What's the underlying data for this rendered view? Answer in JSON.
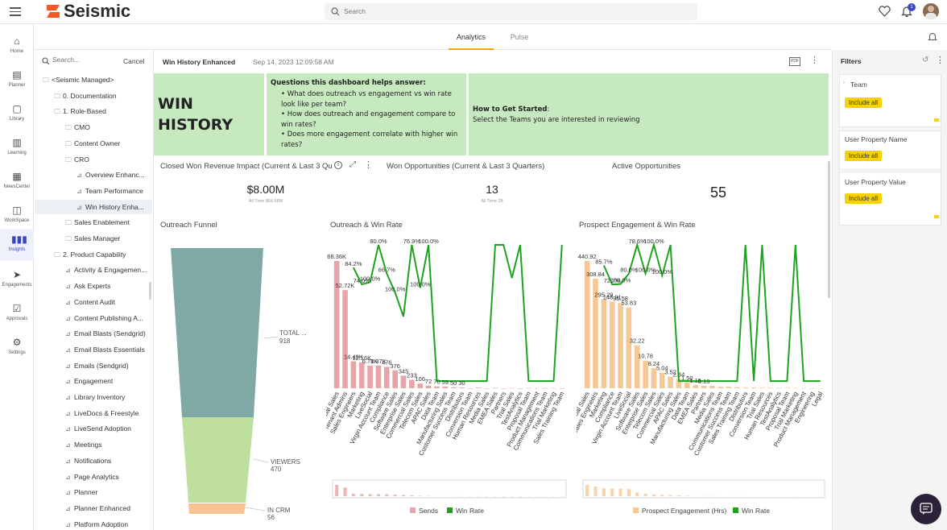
{
  "app": {
    "logo": "Seismic",
    "search_placeholder": "Search",
    "notif_count": "1"
  },
  "nav": [
    "Home",
    "Planner",
    "Library",
    "Learning",
    "NewsCenter",
    "WorkSpace",
    "Insights",
    "Engagements",
    "Approvals",
    "Settings"
  ],
  "tabs": {
    "analytics": "Analytics",
    "pulse": "Pulse"
  },
  "tree_search": {
    "placeholder": "Search...",
    "cancel": "Cancel"
  },
  "tree": [
    {
      "label": "<Seismic Managed>",
      "indent": 0,
      "kind": "folder"
    },
    {
      "label": "0. Documentation",
      "indent": 1,
      "kind": "folder"
    },
    {
      "label": "1. Role-Based",
      "indent": 1,
      "kind": "folder"
    },
    {
      "label": "CMO",
      "indent": 2,
      "kind": "folder"
    },
    {
      "label": "Content Owner",
      "indent": 2,
      "kind": "folder"
    },
    {
      "label": "CRO",
      "indent": 2,
      "kind": "folder"
    },
    {
      "label": "Overview Enhanc...",
      "indent": 3,
      "kind": "report"
    },
    {
      "label": "Team Performance",
      "indent": 3,
      "kind": "report"
    },
    {
      "label": "Win History Enha...",
      "indent": 3,
      "kind": "report",
      "selected": true
    },
    {
      "label": "Sales Enablement",
      "indent": 2,
      "kind": "folder"
    },
    {
      "label": "Sales Manager",
      "indent": 2,
      "kind": "folder"
    },
    {
      "label": "2. Product Capability",
      "indent": 1,
      "kind": "folder"
    },
    {
      "label": "Activity & Engagemen...",
      "indent": 2,
      "kind": "report"
    },
    {
      "label": "Ask Experts",
      "indent": 2,
      "kind": "report"
    },
    {
      "label": "Content Audit",
      "indent": 2,
      "kind": "report"
    },
    {
      "label": "Content Publishing A...",
      "indent": 2,
      "kind": "report"
    },
    {
      "label": "Email Blasts (Sendgrid)",
      "indent": 2,
      "kind": "report"
    },
    {
      "label": "Email Blasts Essentials",
      "indent": 2,
      "kind": "report"
    },
    {
      "label": "Emails (Sendgrid)",
      "indent": 2,
      "kind": "report"
    },
    {
      "label": "Engagement",
      "indent": 2,
      "kind": "report"
    },
    {
      "label": "Library Inventory",
      "indent": 2,
      "kind": "report"
    },
    {
      "label": "LiveDocs & Freestyle",
      "indent": 2,
      "kind": "report"
    },
    {
      "label": "LiveSend Adoption",
      "indent": 2,
      "kind": "report"
    },
    {
      "label": "Meetings",
      "indent": 2,
      "kind": "report"
    },
    {
      "label": "Notifications",
      "indent": 2,
      "kind": "report"
    },
    {
      "label": "Page Analytics",
      "indent": 2,
      "kind": "report"
    },
    {
      "label": "Planner",
      "indent": 2,
      "kind": "report"
    },
    {
      "label": "Planner Enhanced",
      "indent": 2,
      "kind": "report"
    },
    {
      "label": "Platform Adoption",
      "indent": 2,
      "kind": "report"
    }
  ],
  "dashboard": {
    "title": "Win History Enhanced",
    "timestamp": "Sep 14, 2023 12:09:58 AM",
    "pdf": "PDF"
  },
  "banner": {
    "title_line1": "WIN",
    "title_line2": "HISTORY",
    "questions_heading": "Questions this dashboard helps answer:",
    "questions": [
      "What does outreach vs engagement vs win rate look like per team?",
      "How does outreach and engagement compare to win rates?",
      "Does more engagement correlate with higher win rates?"
    ],
    "start_heading": "How to Get Started",
    "start_text": "Select the Teams you are interested in reviewing"
  },
  "kpis": {
    "revenue": {
      "title": "Closed Won Revenue Impact (Current & Last 3 Qu",
      "value": "$8.00M",
      "sub": "All Time $66.58M"
    },
    "won": {
      "title": "Won Opportunities (Current & Last 3 Quarters)",
      "value": "13",
      "sub": "All Time 28"
    },
    "active": {
      "title": "Active Opportunities",
      "value": "55"
    }
  },
  "funnel": {
    "title": "Outreach Funnel",
    "stages": [
      {
        "label": "TOTAL ...",
        "value": 918
      },
      {
        "label": "VIEWERS",
        "value": 470
      },
      {
        "label": "IN CRM",
        "value": 56
      }
    ]
  },
  "chart_data": [
    {
      "type": "bar",
      "title": "Outreach & Win Rate",
      "categories": [
        "Global Sales",
        "Tenant Admins",
        "Sales Engineers",
        "Marketing",
        "LiveSocial",
        "Virgin Account Team",
        "Compliance",
        "Software Sales",
        "Enterprise Sales",
        "Commercial Sales",
        "Telecom Sales",
        "APAC Sales",
        "Data Team",
        "Manufacturing Sales",
        "Customer Success Team",
        "Distributors",
        "Conversion Team",
        "Human Resources",
        "Media Sales",
        "EMEA Sales",
        "Partners",
        "Trial Sales",
        "TestAnalytics",
        "Proposal Team",
        "Product Management",
        "Communications Team",
        "Trial Marketing",
        "Sales Training Team"
      ],
      "series": [
        {
          "name": "Sends",
          "kind": "bar",
          "color": "#e8a4a8",
          "values": [
            68360,
            52720,
            14490,
            13900,
            12160,
            12160,
            11500,
            9600,
            6780,
            4500,
            2500,
            1370,
            1000,
            900,
            476,
            376,
            0,
            345,
            0,
            233,
            0,
            106,
            0,
            72,
            70,
            59,
            50,
            30
          ]
        },
        {
          "name": "Win Rate",
          "kind": "line",
          "color": "#1fa31f",
          "values": [
            null,
            null,
            84.2,
            72.4,
            74.0,
            100.0,
            80.0,
            66.7,
            50.0,
            100.0,
            70.0,
            100.0,
            5,
            5,
            5,
            5,
            5,
            5,
            5,
            100.0,
            100.0,
            76.9,
            100.0,
            5,
            5,
            5,
            5,
            100.0
          ]
        }
      ],
      "data_labels": [
        "68.36K",
        "52.72K",
        "14.49K",
        "12.16K",
        "6.78K",
        "1.37K",
        "476",
        "376",
        "345",
        "233",
        "106",
        "72",
        "70",
        "59",
        "50",
        "30",
        "84.2%",
        "74.0%",
        "100.0%",
        "80.0%",
        "66.7%",
        "100.0%",
        "76.9%",
        "100.0%",
        "100.0%"
      ],
      "legend": [
        {
          "name": "Sends",
          "color": "#e8a4a8"
        },
        {
          "name": "Win Rate",
          "color": "#1fa31f"
        }
      ]
    },
    {
      "type": "bar",
      "title": "Prospect Engagement & Win Rate",
      "categories": [
        "Global Sales",
        "Sales Engineers",
        "Marketing",
        "Compliance",
        "Virgin Account Team",
        "LiveSocial",
        "Software Sales",
        "Enterprise Sales",
        "Telecom Sales",
        "Commercial Sales",
        "APAC Sales",
        "Manufacturing Sales",
        "Data Team",
        "EMEA Sales",
        "Partners",
        "Media Sales",
        "Communications Team",
        "Customer Success Team",
        "Sales Training Team",
        "Distributors",
        "Conversion Team",
        "Trial Sales",
        "Human Resources",
        "TestAnalytics",
        "Proposal Team",
        "Trial Marketing",
        "Product Management",
        "Engineering",
        "Legal"
      ],
      "series": [
        {
          "name": "Prospect Engagement (Hrs)",
          "kind": "bar",
          "color": "#f6c896",
          "values": [
            440.92,
            380,
            308.84,
            300,
            295.29,
            280,
            148.91,
            95.58,
            70,
            53.83,
            40,
            32.22,
            20,
            10.78,
            8.24,
            8.24,
            5.04,
            5.04,
            3.52,
            2.34,
            2.34,
            1.5,
            1.5,
            1.15,
            1.15,
            0.5,
            0.5,
            0.13,
            0.13
          ]
        },
        {
          "name": "Win Rate",
          "kind": "line",
          "color": "#1fa31f",
          "values": [
            null,
            null,
            85.7,
            72.4,
            72.7,
            80.0,
            100.0,
            80.0,
            100.0,
            78.6,
            100.0,
            5,
            5,
            5,
            5,
            5,
            5,
            5,
            5,
            100.0,
            5,
            100.0,
            5,
            5,
            5,
            100.0,
            5,
            5,
            5
          ]
        }
      ],
      "data_labels": [
        "440.92",
        "308.84",
        "295.29",
        "148.91",
        "95.58",
        "53.83",
        "32.22",
        "10.78",
        "8.24",
        "5.04",
        "3.52",
        "2.34",
        "1.50",
        "1.15",
        "0.13",
        "85.7%",
        "72.7%",
        "100.0%",
        "80.0%",
        "78.6%",
        "100.0%",
        "100.0%",
        "100.0%"
      ],
      "legend": [
        {
          "name": "Prospect Engagement (Hrs)",
          "color": "#f6c896"
        },
        {
          "name": "Win Rate",
          "color": "#1fa31f"
        }
      ]
    }
  ],
  "filters": {
    "title": "Filters",
    "groups": [
      {
        "label": "Team",
        "button": "Include all"
      },
      {
        "label": "User Property Name",
        "button": "Include all"
      },
      {
        "label": "User Property Value",
        "button": "Include all"
      }
    ]
  }
}
